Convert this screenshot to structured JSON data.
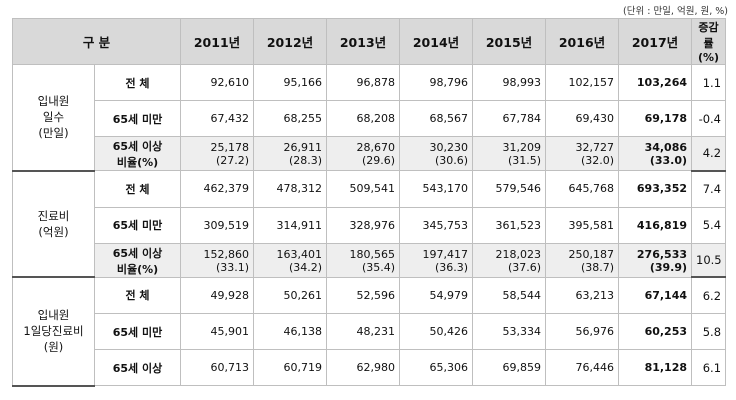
{
  "unit_note": "(단위 : 만일, 억원, 원, %)",
  "header": {
    "category": "구  분",
    "years": [
      "2011년",
      "2012년",
      "2013년",
      "2014년",
      "2015년",
      "2016년",
      "2017년"
    ],
    "increase": "증감률(%)"
  },
  "sections": [
    {
      "category": [
        "입내원",
        "일수",
        "(만일)"
      ],
      "rows": [
        {
          "label": "전    체",
          "values": [
            "92,610",
            "95,166",
            "96,878",
            "98,796",
            "98,993",
            "102,157",
            "103,264"
          ],
          "increase": "1.1"
        },
        {
          "label": "65세 미만",
          "values": [
            "67,432",
            "68,255",
            "68,208",
            "68,567",
            "67,784",
            "69,430",
            "69,178"
          ],
          "increase": "-0.4"
        },
        {
          "label": "65세 이상",
          "values": [
            "25,178",
            "26,911",
            "28,670",
            "30,230",
            "31,209",
            "32,727",
            "34,086"
          ],
          "increase": "4.2",
          "ratio_label": "비율(%)",
          "ratios": [
            "(27.2)",
            "(28.3)",
            "(29.6)",
            "(30.6)",
            "(31.5)",
            "(32.0)",
            "(33.0)"
          ]
        }
      ]
    },
    {
      "category": [
        "진료비",
        "(억원)"
      ],
      "rows": [
        {
          "label": "전    체",
          "values": [
            "462,379",
            "478,312",
            "509,541",
            "543,170",
            "579,546",
            "645,768",
            "693,352"
          ],
          "increase": "7.4"
        },
        {
          "label": "65세 미만",
          "values": [
            "309,519",
            "314,911",
            "328,976",
            "345,753",
            "361,523",
            "395,581",
            "416,819"
          ],
          "increase": "5.4"
        },
        {
          "label": "65세 이상",
          "values": [
            "152,860",
            "163,401",
            "180,565",
            "197,417",
            "218,023",
            "250,187",
            "276,533"
          ],
          "increase": "10.5",
          "ratio_label": "비율(%)",
          "ratios": [
            "(33.1)",
            "(34.2)",
            "(35.4)",
            "(36.3)",
            "(37.6)",
            "(38.7)",
            "(39.9)"
          ]
        }
      ]
    },
    {
      "category": [
        "입내원",
        "1일당진료비",
        "(원)"
      ],
      "rows": [
        {
          "label": "전    체",
          "values": [
            "49,928",
            "50,261",
            "52,596",
            "54,979",
            "58,544",
            "63,213",
            "67,144"
          ],
          "increase": "6.2"
        },
        {
          "label": "65세 미만",
          "values": [
            "45,901",
            "46,138",
            "48,231",
            "50,426",
            "53,334",
            "56,976",
            "60,253"
          ],
          "increase": "5.8"
        },
        {
          "label": "65세 이상",
          "values": [
            "60,713",
            "60,719",
            "62,980",
            "65,306",
            "69,859",
            "76,446",
            "81,128"
          ],
          "increase": "6.1"
        }
      ]
    }
  ]
}
